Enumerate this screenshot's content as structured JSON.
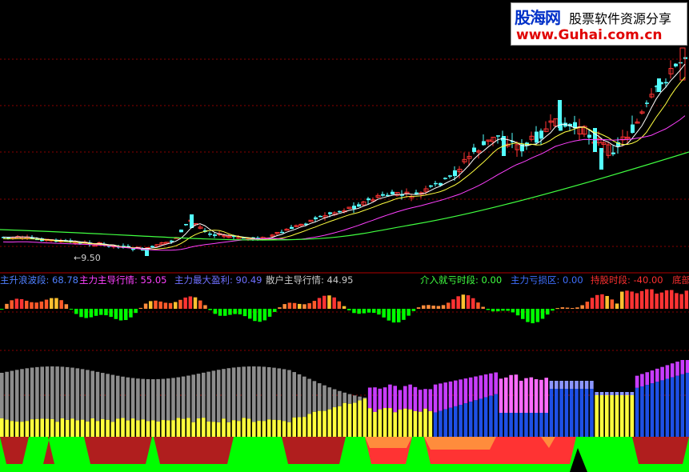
{
  "logo": {
    "site_cn": "股海网",
    "slogan": "股票软件资源分享",
    "url": "www.Guhai.com.cn"
  },
  "price_panel": {
    "low_label": "9.50"
  },
  "indicator_line": {
    "items": [
      {
        "label": "主升浪波段:",
        "value": "68.78",
        "color": "#4f7fff"
      },
      {
        "label": "主力主导行情:",
        "value": "55.05",
        "color": "#ff40ff"
      },
      {
        "label": "主力最大盈利:",
        "value": "90.49",
        "color": "#6f6fff"
      },
      {
        "label": "散户主导行情:",
        "value": "44.95",
        "color": "#c8c8c8"
      },
      {
        "label": "介入就亏时段:",
        "value": "0.00",
        "color": "#40ff40"
      },
      {
        "label": "主力亏损区:",
        "value": "0.00",
        "color": "#3f6fff"
      },
      {
        "label": "持股时段:",
        "value": "-40.00",
        "color": "#ff3030"
      },
      {
        "label": "底部",
        "value": "",
        "color": "#ff3030"
      }
    ]
  },
  "colors": {
    "up": "#ff3333",
    "down": "#54ffff",
    "ma_white": "#ffffff",
    "ma_yellow": "#ffff40",
    "ma_magenta": "#ff40ff",
    "ma_green": "#40ff40",
    "grid": "#8b0000",
    "grey_bar": "#8c8c8c",
    "yellow_bar": "#ffff3c",
    "magenta_bar": "#c83cff",
    "blue_bar": "#1e50e6",
    "pink_bar": "#ff6cff",
    "dark_red": "#b01e1e",
    "green": "#00ff00",
    "orange": "#ff8c3c"
  }
}
